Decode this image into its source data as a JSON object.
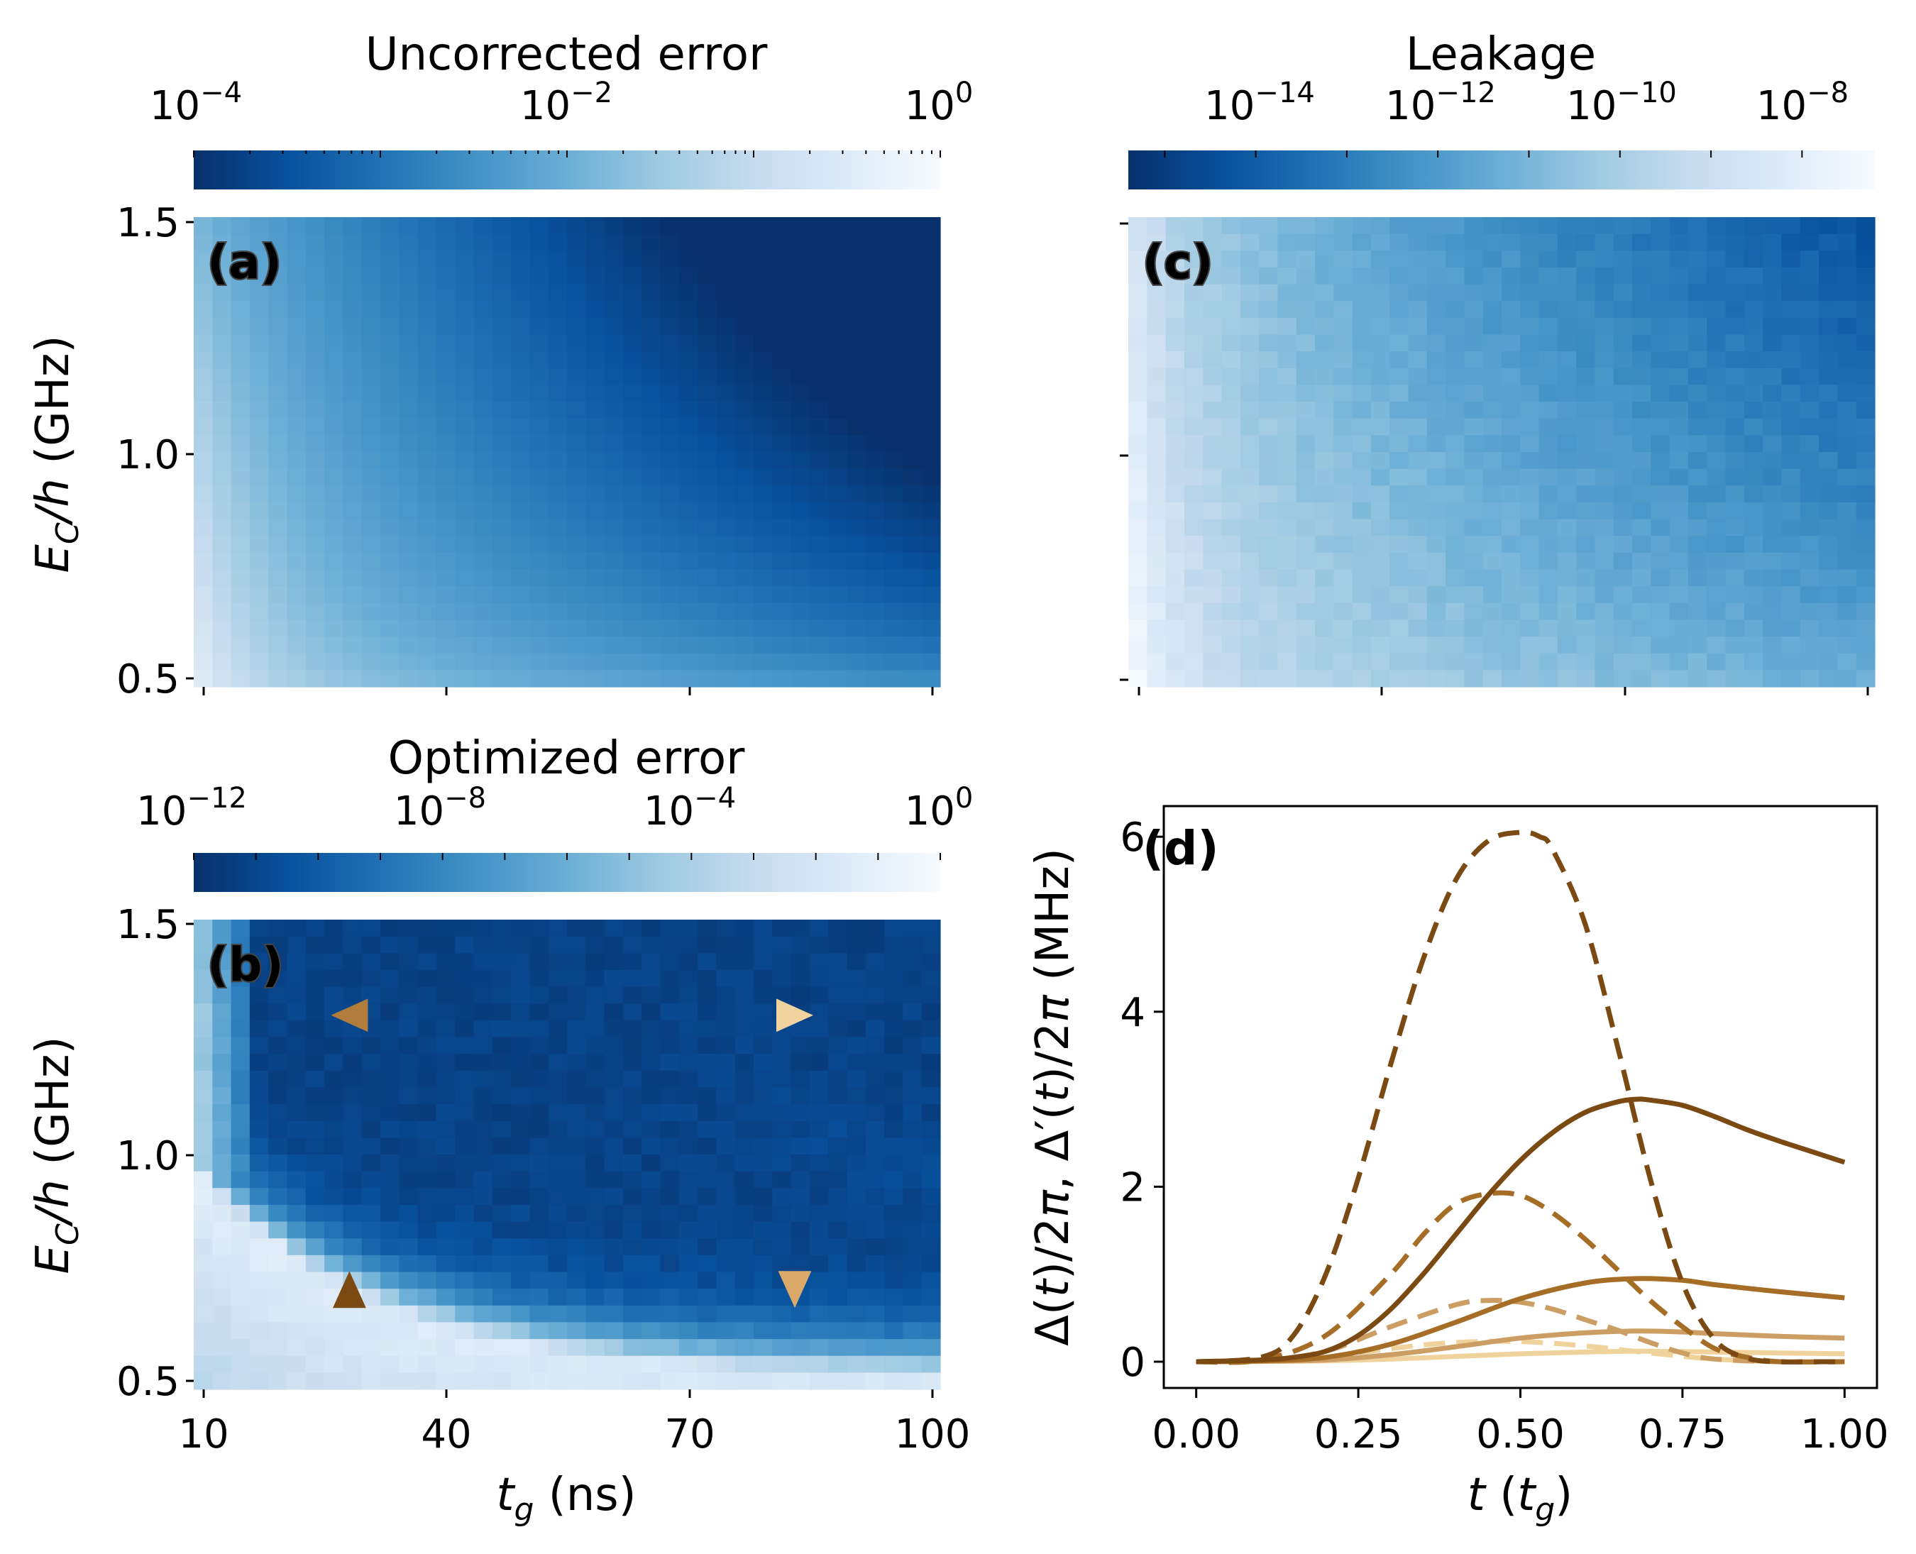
{
  "chart_data": [
    {
      "panel": "a",
      "type": "heatmap",
      "panel_label": "(a)",
      "colorbar_title": "Uncorrected error",
      "colorbar_ticks": [
        {
          "base": "10",
          "exp": "−4",
          "value": -4
        },
        {
          "base": "10",
          "exp": "−2",
          "value": -2
        },
        {
          "base": "10",
          "exp": "0",
          "value": 0
        }
      ],
      "colorbar_log_range": [
        -4,
        0
      ],
      "colormap": [
        "#08306b",
        "#08519c",
        "#2171b5",
        "#4292c6",
        "#6baed6",
        "#9ecae1",
        "#c6dbef",
        "#deebf7",
        "#f7fbff"
      ],
      "ylabel": "E_C/h (GHz)",
      "yticks": [
        {
          "label": "1.5",
          "value": 1.5
        },
        {
          "label": "1.0",
          "value": 1.0
        },
        {
          "label": "0.5",
          "value": 0.5
        }
      ],
      "ylim": [
        0.5,
        1.5
      ],
      "xlim": [
        10,
        100
      ],
      "xticks_values": [
        10,
        40,
        70,
        100
      ],
      "grid_cols": 40,
      "grid_rows": 28,
      "value_model": "smooth: error decreases with t_g and with E_C; range approx 1e-4 to 1e-1"
    },
    {
      "panel": "b",
      "type": "heatmap",
      "panel_label": "(b)",
      "colorbar_title": "Optimized error",
      "colorbar_ticks": [
        {
          "base": "10",
          "exp": "−12",
          "value": -12
        },
        {
          "base": "10",
          "exp": "−8",
          "value": -8
        },
        {
          "base": "10",
          "exp": "−4",
          "value": -4
        },
        {
          "base": "10",
          "exp": "0",
          "value": 0
        }
      ],
      "colorbar_log_range": [
        -12,
        0
      ],
      "colormap": [
        "#08306b",
        "#08519c",
        "#2171b5",
        "#4292c6",
        "#6baed6",
        "#9ecae1",
        "#c6dbef",
        "#deebf7",
        "#f7fbff"
      ],
      "xlabel": "t_g (ns)",
      "xticks": [
        {
          "label": "10",
          "value": 10
        },
        {
          "label": "40",
          "value": 40
        },
        {
          "label": "70",
          "value": 70
        },
        {
          "label": "100",
          "value": 100
        }
      ],
      "xlim": [
        10,
        100
      ],
      "ylabel": "E_C/h (GHz)",
      "yticks": [
        {
          "label": "1.5",
          "value": 1.5
        },
        {
          "label": "1.0",
          "value": 1.0
        },
        {
          "label": "0.5",
          "value": 0.5
        }
      ],
      "ylim": [
        0.5,
        1.5
      ],
      "grid_cols": 40,
      "grid_rows": 28,
      "markers": [
        {
          "shape": "triangle-left",
          "t_g": 28,
          "E_C": 1.3,
          "color": "#b07d3c"
        },
        {
          "shape": "triangle-right",
          "t_g": 83,
          "E_C": 1.3,
          "color": "#f0d39e"
        },
        {
          "shape": "triangle-up",
          "t_g": 28,
          "E_C": 0.7,
          "color": "#7b4a12"
        },
        {
          "shape": "triangle-down",
          "t_g": 83,
          "E_C": 0.7,
          "color": "#dba96a"
        }
      ],
      "value_model": "low-error valley (~1e-11) above a boundary curve; high error (~1e-1) at short t_g and small E_C"
    },
    {
      "panel": "c",
      "type": "heatmap",
      "panel_label": "(c)",
      "colorbar_title": "Leakage",
      "colorbar_ticks": [
        {
          "base": "10",
          "exp": "−14",
          "value": -14
        },
        {
          "base": "10",
          "exp": "−12",
          "value": -12
        },
        {
          "base": "10",
          "exp": "−10",
          "value": -10
        },
        {
          "base": "10",
          "exp": "−8",
          "value": -8
        }
      ],
      "colorbar_log_range": [
        -15.4,
        -7.2
      ],
      "colormap": [
        "#08306b",
        "#08519c",
        "#2171b5",
        "#4292c6",
        "#6baed6",
        "#9ecae1",
        "#c6dbef",
        "#deebf7",
        "#f7fbff"
      ],
      "ylim": [
        0.5,
        1.5
      ],
      "xlim": [
        10,
        100
      ],
      "xticks_values": [
        10,
        40,
        70,
        100
      ],
      "yticks_values": [
        1.5,
        1.0,
        0.5
      ],
      "grid_cols": 40,
      "grid_rows": 28,
      "value_model": "noisy: leakage decreases with t_g and E_C; range approx 1e-15 to 1e-8"
    },
    {
      "panel": "d",
      "type": "line",
      "panel_label": "(d)",
      "xlabel": "t (t_g)",
      "ylabel": "Δ(t)/2π, Δ′(t)/2π (MHz)",
      "xlim": [
        -0.05,
        1.05
      ],
      "ylim": [
        -0.3,
        6.35
      ],
      "xticks": [
        {
          "label": "0.00",
          "value": 0.0
        },
        {
          "label": "0.25",
          "value": 0.25
        },
        {
          "label": "0.50",
          "value": 0.5
        },
        {
          "label": "0.75",
          "value": 0.75
        },
        {
          "label": "1.00",
          "value": 1.0
        }
      ],
      "yticks": [
        {
          "label": "0",
          "value": 0
        },
        {
          "label": "2",
          "value": 2
        },
        {
          "label": "4",
          "value": 4
        },
        {
          "label": "6",
          "value": 6
        }
      ],
      "series": [
        {
          "name": "Δ(t) E_C=0.7 t_g=28",
          "style": "solid",
          "color": "#7b4a12",
          "x": [
            0,
            0.1,
            0.15,
            0.2,
            0.25,
            0.3,
            0.35,
            0.4,
            0.45,
            0.5,
            0.55,
            0.6,
            0.65,
            0.68,
            0.7,
            0.75,
            0.8,
            0.85,
            0.9,
            0.95,
            1.0
          ],
          "y": [
            0,
            0.02,
            0.05,
            0.12,
            0.3,
            0.6,
            1.0,
            1.45,
            1.9,
            2.3,
            2.62,
            2.85,
            2.97,
            3.0,
            2.99,
            2.93,
            2.8,
            2.65,
            2.52,
            2.4,
            2.28
          ]
        },
        {
          "name": "Δ′(t) E_C=0.7 t_g=28",
          "style": "dashed",
          "color": "#7b4a12",
          "x": [
            0,
            0.1,
            0.15,
            0.2,
            0.25,
            0.3,
            0.35,
            0.4,
            0.45,
            0.5,
            0.53,
            0.55,
            0.6,
            0.65,
            0.7,
            0.75,
            0.8,
            0.85,
            0.9,
            0.95,
            1.0
          ],
          "y": [
            0,
            0.05,
            0.3,
            1.0,
            2.1,
            3.4,
            4.6,
            5.5,
            5.95,
            6.05,
            6.0,
            5.85,
            5.0,
            3.6,
            2.1,
            0.9,
            0.25,
            0.04,
            0.0,
            0.0,
            0.0
          ]
        },
        {
          "name": "Δ(t) E_C=0.7 t_g=83",
          "style": "solid",
          "color": "#a56d26",
          "x": [
            0,
            0.1,
            0.2,
            0.3,
            0.4,
            0.5,
            0.6,
            0.68,
            0.75,
            0.8,
            0.9,
            1.0
          ],
          "y": [
            0,
            0.01,
            0.05,
            0.2,
            0.45,
            0.72,
            0.9,
            0.95,
            0.93,
            0.88,
            0.8,
            0.73
          ]
        },
        {
          "name": "Δ′(t) E_C=0.7 t_g=83",
          "style": "dashed",
          "color": "#a56d26",
          "x": [
            0,
            0.1,
            0.2,
            0.3,
            0.35,
            0.4,
            0.45,
            0.5,
            0.55,
            0.6,
            0.65,
            0.7,
            0.75,
            0.8,
            0.85,
            0.9,
            1.0
          ],
          "y": [
            0,
            0.02,
            0.3,
            1.0,
            1.45,
            1.8,
            1.92,
            1.9,
            1.7,
            1.4,
            1.05,
            0.7,
            0.4,
            0.15,
            0.05,
            0.0,
            0.0
          ]
        },
        {
          "name": "Δ(t) E_C=1.3 t_g=28",
          "style": "solid",
          "color": "#cc9e64",
          "x": [
            0,
            0.1,
            0.2,
            0.3,
            0.4,
            0.5,
            0.6,
            0.68,
            0.75,
            0.8,
            0.9,
            1.0
          ],
          "y": [
            0,
            0.005,
            0.02,
            0.08,
            0.17,
            0.27,
            0.33,
            0.35,
            0.34,
            0.32,
            0.29,
            0.27
          ]
        },
        {
          "name": "Δ′(t) E_C=1.3 t_g=28",
          "style": "dashed",
          "color": "#cc9e64",
          "x": [
            0,
            0.1,
            0.2,
            0.3,
            0.4,
            0.45,
            0.5,
            0.55,
            0.6,
            0.65,
            0.7,
            0.75,
            0.8,
            0.9,
            1.0
          ],
          "y": [
            0,
            0.01,
            0.12,
            0.4,
            0.65,
            0.7,
            0.68,
            0.6,
            0.48,
            0.36,
            0.22,
            0.1,
            0.03,
            0.0,
            0.0
          ]
        },
        {
          "name": "Δ(t) E_C=1.3 t_g=83",
          "style": "solid",
          "color": "#efd29c",
          "x": [
            0,
            0.1,
            0.2,
            0.3,
            0.4,
            0.5,
            0.6,
            0.68,
            0.75,
            0.8,
            0.9,
            1.0
          ],
          "y": [
            0,
            0.002,
            0.01,
            0.03,
            0.06,
            0.09,
            0.11,
            0.12,
            0.115,
            0.11,
            0.1,
            0.09
          ]
        },
        {
          "name": "Δ′(t) E_C=1.3 t_g=83",
          "style": "dashed",
          "color": "#efd29c",
          "x": [
            0,
            0.1,
            0.2,
            0.3,
            0.4,
            0.5,
            0.6,
            0.7,
            0.8,
            0.9,
            1.0
          ],
          "y": [
            0,
            0.005,
            0.05,
            0.15,
            0.22,
            0.23,
            0.18,
            0.1,
            0.03,
            0.0,
            0.0
          ]
        }
      ]
    }
  ]
}
